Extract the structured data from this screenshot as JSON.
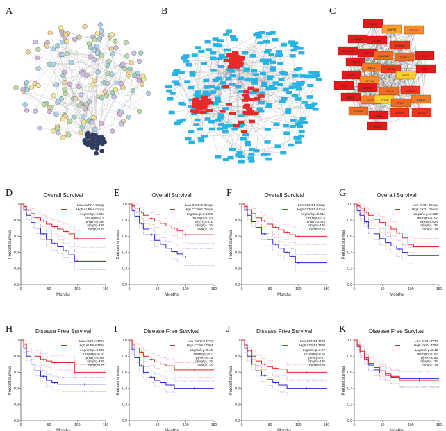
{
  "figure": {
    "panel_letters": [
      "A",
      "B",
      "C",
      "D",
      "E",
      "F",
      "G",
      "H",
      "I",
      "J",
      "K"
    ],
    "colors": {
      "red": "#e62222",
      "red_ci": "#f08a8a",
      "blue": "#2424d6",
      "blue_ci": "#8a8af0",
      "node_blue": "#27b3e3",
      "node_red": "#e42a2a",
      "hub_dark": "#1e2a48",
      "edge_gray": "#888888"
    }
  },
  "hub_genes": [
    {
      "name": "CDK1",
      "color": "#e31a1c"
    },
    {
      "name": "DHFR1",
      "color": "#fda02b"
    },
    {
      "name": "CDCA5",
      "color": "#fb8a22"
    },
    {
      "name": "AURKB",
      "color": "#e31a1c"
    },
    {
      "name": "CCNB1",
      "color": "#e31a1c"
    },
    {
      "name": "MCM10",
      "color": "#e8391c"
    },
    {
      "name": "DLGAP5",
      "color": "#e31a1c"
    },
    {
      "name": "NUF2",
      "color": "#e31a1c"
    },
    {
      "name": "FAM83D",
      "color": "#f06a22"
    },
    {
      "name": "TRIP13",
      "color": "#f06a22"
    },
    {
      "name": "TTK",
      "color": "#e31a1c"
    },
    {
      "name": "ZWINT",
      "color": "#e31a1c"
    },
    {
      "name": "MELK",
      "color": "#f47c24"
    },
    {
      "name": "KIF2C",
      "color": "#e8391c"
    },
    {
      "name": "CDT1",
      "color": "#e31a1c"
    },
    {
      "name": "EXO1",
      "color": "#e31a1c"
    },
    {
      "name": "KIF18A",
      "color": "#f68d24"
    },
    {
      "name": "MND1",
      "color": "#fccf2f"
    },
    {
      "name": "TPX2",
      "color": "#e31a1c"
    },
    {
      "name": "AURKA",
      "color": "#e31a1c"
    },
    {
      "name": "KIF14",
      "color": "#f06a22"
    },
    {
      "name": "CDC45",
      "color": "#e8391c"
    },
    {
      "name": "NEK2",
      "color": "#e31a1c"
    },
    {
      "name": "KIF23",
      "color": "#f47c24"
    },
    {
      "name": "RFC3",
      "color": "#fccf2f"
    },
    {
      "name": "PRC1",
      "color": "#f06a22"
    },
    {
      "name": "ATAD2",
      "color": "#f47c24"
    },
    {
      "name": "FOXM1",
      "color": "#f06a22"
    },
    {
      "name": "CCNA2",
      "color": "#e31a1c"
    },
    {
      "name": "CYBB1",
      "color": "#e8391c"
    },
    {
      "name": "MCM2",
      "color": "#e8391c"
    },
    {
      "name": "BUB1",
      "color": "#e31a1c"
    }
  ],
  "km_plots": [
    {
      "panel": "D",
      "title": "Overall Survival",
      "xlabel": "Months",
      "ylabel": "Percent survival",
      "legend": [
        "Low AURKA Group",
        "High AURKA Group"
      ],
      "stats": [
        "Logrank p=0.034",
        "HR(high)=0.6",
        "p(HR)=0.036",
        "n(high)=135",
        "n(low)=135"
      ]
    },
    {
      "panel": "E",
      "title": "Overall Survival",
      "xlabel": "Months",
      "ylabel": "Percent survival",
      "legend": [
        "Low CCNA2 Group",
        "High CCNA2 Group"
      ],
      "stats": [
        "Logrank p=0.0095",
        "HR(high)=0.53",
        "p(HR)=0.011",
        "n(high)=135",
        "n(low)=135"
      ]
    },
    {
      "panel": "F",
      "title": "Overall Survival",
      "xlabel": "Months",
      "ylabel": "Percent survival",
      "legend": [
        "Low CCNB1 Group",
        "High CCNB1 Group"
      ],
      "stats": [
        "Logrank p=0.041",
        "HR(high)=0.6",
        "p(HR)=0.043",
        "n(high)=135",
        "n(low)=135"
      ]
    },
    {
      "panel": "G",
      "title": "Overall Survival",
      "xlabel": "Months",
      "ylabel": "Percent survival",
      "legend": [
        "Low EXO1 Group",
        "High EXO1 Group"
      ],
      "stats": [
        "Logrank p=0.022",
        "HR(high)=0.57",
        "p(HR)=0.024",
        "n(high)=135",
        "n(low)=134"
      ]
    },
    {
      "panel": "H",
      "title": "Disease Free Survival",
      "xlabel": "Months",
      "ylabel": "Percent survival",
      "legend": [
        "Low AURKA TPM",
        "High AURKA TPM"
      ],
      "stats": [
        "Logrank p=0.086",
        "HR(high)=0.65",
        "p(HR)=0.088",
        "n(high)=135",
        "n(low)=135"
      ]
    },
    {
      "panel": "I",
      "title": "Disease Free Survival",
      "xlabel": "Months",
      "ylabel": "Percent survival",
      "legend": [
        "Low CCNA2 TPM",
        "High CCNA2 TPM"
      ],
      "stats": [
        "Logrank p=0.15",
        "HR(high)=0.7",
        "p(HR)=0.15",
        "n(high)=135",
        "n(low)=135"
      ]
    },
    {
      "panel": "J",
      "title": "Disease Free Survival",
      "xlabel": "Months",
      "ylabel": "Percent survival",
      "legend": [
        "Low CCNB1 TPM",
        "High CCNB1 TPM"
      ],
      "stats": [
        "Logrank p=0.27",
        "HR(high)=0.76",
        "p(HR)=0.27",
        "n(high)=135",
        "n(low)=135"
      ]
    },
    {
      "panel": "K",
      "title": "Disease Free Survival",
      "xlabel": "Months",
      "ylabel": "Percent survival",
      "legend": [
        "Low EXO1 TPM",
        "High EXO1 TPM"
      ],
      "stats": [
        "Logrank p=0.42",
        "HR(high)=0.82",
        "p(HR)=0.42",
        "n(high)=135",
        "n(low)=134"
      ]
    }
  ],
  "chart_data": [
    {
      "type": "line",
      "panel": "D",
      "title": "Overall Survival",
      "xlabel": "Months",
      "ylabel": "Percent survival",
      "xlim": [
        0,
        150
      ],
      "ylim": [
        0,
        1
      ],
      "xticks": [
        0,
        50,
        100,
        150
      ],
      "yticks": [
        0,
        0.2,
        0.4,
        0.6,
        0.8,
        1.0
      ],
      "series": [
        {
          "name": "Low AURKA Group",
          "color": "blue",
          "x": [
            0,
            5,
            10,
            18,
            25,
            35,
            45,
            55,
            65,
            75,
            85,
            95,
            105,
            150
          ],
          "y": [
            1,
            0.93,
            0.86,
            0.77,
            0.7,
            0.63,
            0.56,
            0.51,
            0.47,
            0.42,
            0.37,
            0.29,
            0.29,
            0.29
          ]
        },
        {
          "name": "High AURKA Group",
          "color": "red",
          "x": [
            0,
            5,
            10,
            18,
            25,
            35,
            45,
            55,
            65,
            75,
            85,
            95,
            105,
            150
          ],
          "y": [
            1,
            0.97,
            0.93,
            0.88,
            0.83,
            0.79,
            0.75,
            0.72,
            0.69,
            0.66,
            0.63,
            0.57,
            0.57,
            0.57
          ]
        }
      ]
    },
    {
      "type": "line",
      "panel": "E",
      "title": "Overall Survival",
      "xlabel": "Months",
      "ylabel": "Percent survival",
      "xlim": [
        0,
        150
      ],
      "ylim": [
        0,
        1
      ],
      "xticks": [
        0,
        50,
        100,
        150
      ],
      "yticks": [
        0,
        0.2,
        0.4,
        0.6,
        0.8,
        1.0
      ],
      "series": [
        {
          "name": "Low CCNA2 Group",
          "color": "blue",
          "x": [
            0,
            5,
            10,
            18,
            25,
            35,
            45,
            55,
            65,
            75,
            85,
            95,
            105,
            150
          ],
          "y": [
            1,
            0.92,
            0.85,
            0.76,
            0.69,
            0.62,
            0.55,
            0.5,
            0.45,
            0.41,
            0.38,
            0.34,
            0.34,
            0.34
          ]
        },
        {
          "name": "High CCNA2 Group",
          "color": "red",
          "x": [
            0,
            5,
            10,
            18,
            25,
            35,
            45,
            55,
            65,
            75,
            85,
            95,
            105,
            150
          ],
          "y": [
            1,
            0.98,
            0.95,
            0.9,
            0.86,
            0.82,
            0.79,
            0.76,
            0.73,
            0.7,
            0.67,
            0.62,
            0.62,
            0.62
          ]
        }
      ]
    },
    {
      "type": "line",
      "panel": "F",
      "title": "Overall Survival",
      "xlabel": "Months",
      "ylabel": "Percent survival",
      "xlim": [
        0,
        150
      ],
      "ylim": [
        0,
        1
      ],
      "xticks": [
        0,
        50,
        100,
        150
      ],
      "yticks": [
        0,
        0.2,
        0.4,
        0.6,
        0.8,
        1.0
      ],
      "series": [
        {
          "name": "Low CCNB1 Group",
          "color": "blue",
          "x": [
            0,
            5,
            10,
            18,
            25,
            35,
            45,
            55,
            65,
            75,
            85,
            95,
            105,
            150
          ],
          "y": [
            1,
            0.93,
            0.86,
            0.78,
            0.71,
            0.63,
            0.56,
            0.5,
            0.45,
            0.4,
            0.35,
            0.27,
            0.27,
            0.27
          ]
        },
        {
          "name": "High CCNB1 Group",
          "color": "red",
          "x": [
            0,
            5,
            10,
            18,
            25,
            35,
            45,
            55,
            65,
            75,
            85,
            95,
            105,
            150
          ],
          "y": [
            1,
            0.97,
            0.93,
            0.88,
            0.83,
            0.79,
            0.75,
            0.71,
            0.68,
            0.65,
            0.62,
            0.6,
            0.6,
            0.6
          ]
        }
      ]
    },
    {
      "type": "line",
      "panel": "G",
      "title": "Overall Survival",
      "xlabel": "Months",
      "ylabel": "Percent survival",
      "xlim": [
        0,
        150
      ],
      "ylim": [
        0,
        1
      ],
      "xticks": [
        0,
        50,
        100,
        150
      ],
      "yticks": [
        0,
        0.2,
        0.4,
        0.6,
        0.8,
        1.0
      ],
      "series": [
        {
          "name": "Low EXO1 Group",
          "color": "blue",
          "x": [
            0,
            5,
            10,
            18,
            25,
            35,
            45,
            55,
            65,
            75,
            85,
            95,
            105,
            150
          ],
          "y": [
            1,
            0.92,
            0.86,
            0.78,
            0.7,
            0.63,
            0.57,
            0.52,
            0.48,
            0.44,
            0.4,
            0.36,
            0.36,
            0.36
          ]
        },
        {
          "name": "High EXO1 Group",
          "color": "red",
          "x": [
            0,
            5,
            10,
            18,
            25,
            35,
            45,
            55,
            65,
            75,
            85,
            95,
            105,
            150
          ],
          "y": [
            1,
            0.98,
            0.95,
            0.9,
            0.86,
            0.81,
            0.77,
            0.73,
            0.69,
            0.64,
            0.58,
            0.5,
            0.47,
            0.47
          ]
        }
      ]
    },
    {
      "type": "line",
      "panel": "H",
      "title": "Disease Free Survival",
      "xlabel": "Months",
      "ylabel": "Percent survival",
      "xlim": [
        0,
        150
      ],
      "ylim": [
        0,
        1
      ],
      "xticks": [
        0,
        50,
        100,
        150
      ],
      "yticks": [
        0,
        0.2,
        0.4,
        0.6,
        0.8,
        1.0
      ],
      "series": [
        {
          "name": "Low AURKA TPM",
          "color": "blue",
          "x": [
            0,
            5,
            10,
            18,
            25,
            35,
            45,
            55,
            65,
            75,
            150
          ],
          "y": [
            1,
            0.9,
            0.8,
            0.7,
            0.62,
            0.55,
            0.5,
            0.47,
            0.45,
            0.45,
            0.45
          ]
        },
        {
          "name": "High AURKA TPM",
          "color": "red",
          "x": [
            0,
            5,
            10,
            18,
            25,
            35,
            45,
            55,
            65,
            75,
            95,
            150
          ],
          "y": [
            1,
            0.95,
            0.9,
            0.84,
            0.8,
            0.76,
            0.74,
            0.72,
            0.72,
            0.72,
            0.6,
            0.6
          ]
        }
      ]
    },
    {
      "type": "line",
      "panel": "I",
      "title": "Disease Free Survival",
      "xlabel": "Months",
      "ylabel": "Percent survival",
      "xlim": [
        0,
        150
      ],
      "ylim": [
        0,
        1
      ],
      "xticks": [
        0,
        50,
        100,
        150
      ],
      "yticks": [
        0,
        0.2,
        0.4,
        0.6,
        0.8,
        1.0
      ],
      "series": [
        {
          "name": "Low CCNA2 TPM",
          "color": "blue",
          "x": [
            0,
            5,
            10,
            18,
            25,
            35,
            45,
            55,
            65,
            80,
            150
          ],
          "y": [
            1,
            0.88,
            0.78,
            0.68,
            0.6,
            0.54,
            0.5,
            0.47,
            0.44,
            0.4,
            0.4
          ]
        },
        {
          "name": "High CCNA2 TPM",
          "color": "red",
          "x": [
            0,
            5,
            10,
            18,
            25,
            35,
            45,
            55,
            65,
            80,
            150
          ],
          "y": [
            1,
            0.95,
            0.9,
            0.85,
            0.8,
            0.76,
            0.73,
            0.7,
            0.68,
            0.63,
            0.63
          ]
        }
      ]
    },
    {
      "type": "line",
      "panel": "J",
      "title": "Disease Free Survival",
      "xlabel": "Months",
      "ylabel": "Percent survival",
      "xlim": [
        0,
        150
      ],
      "ylim": [
        0,
        1
      ],
      "xticks": [
        0,
        50,
        100,
        150
      ],
      "yticks": [
        0,
        0.2,
        0.4,
        0.6,
        0.8,
        1.0
      ],
      "series": [
        {
          "name": "Low CCNB1 TPM",
          "color": "blue",
          "x": [
            0,
            5,
            10,
            18,
            25,
            35,
            45,
            55,
            65,
            80,
            150
          ],
          "y": [
            1,
            0.9,
            0.8,
            0.7,
            0.62,
            0.56,
            0.51,
            0.47,
            0.44,
            0.4,
            0.4
          ]
        },
        {
          "name": "High CCNB1 TPM",
          "color": "red",
          "x": [
            0,
            5,
            10,
            18,
            25,
            35,
            45,
            55,
            65,
            80,
            150
          ],
          "y": [
            1,
            0.94,
            0.87,
            0.8,
            0.74,
            0.7,
            0.67,
            0.65,
            0.64,
            0.6,
            0.6
          ]
        }
      ]
    },
    {
      "type": "line",
      "panel": "K",
      "title": "Disease Free Survival",
      "xlabel": "Months",
      "ylabel": "Percent survival",
      "xlim": [
        0,
        150
      ],
      "ylim": [
        0,
        1
      ],
      "xticks": [
        0,
        50,
        100,
        150
      ],
      "yticks": [
        0,
        0.2,
        0.4,
        0.6,
        0.8,
        1.0
      ],
      "series": [
        {
          "name": "Low EXO1 TPM",
          "color": "blue",
          "x": [
            0,
            5,
            10,
            18,
            25,
            35,
            45,
            55,
            65,
            80,
            150
          ],
          "y": [
            1,
            0.92,
            0.84,
            0.76,
            0.69,
            0.63,
            0.59,
            0.56,
            0.54,
            0.52,
            0.52
          ]
        },
        {
          "name": "High EXO1 TPM",
          "color": "red",
          "x": [
            0,
            5,
            10,
            18,
            25,
            35,
            45,
            55,
            65,
            80,
            150
          ],
          "y": [
            1,
            0.94,
            0.86,
            0.78,
            0.71,
            0.66,
            0.62,
            0.58,
            0.55,
            0.5,
            0.5
          ]
        }
      ]
    }
  ]
}
